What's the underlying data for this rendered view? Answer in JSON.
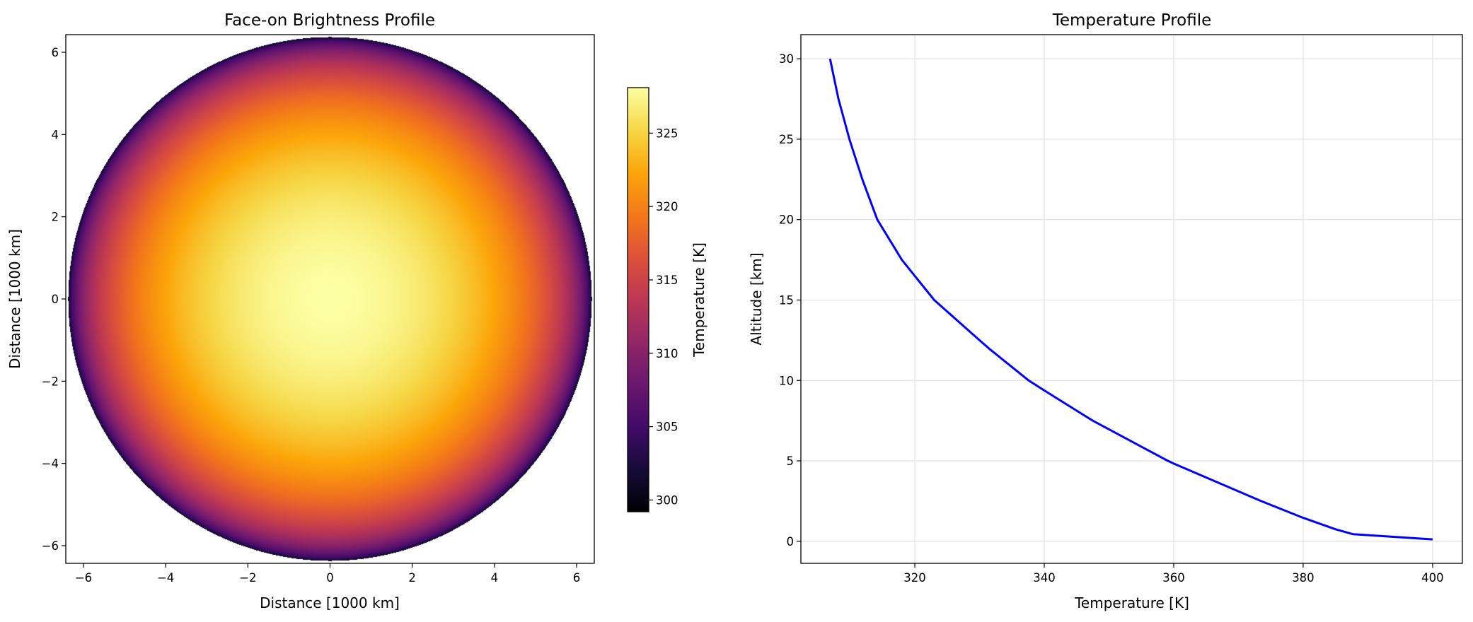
{
  "chart_data": [
    {
      "type": "heatmap",
      "title": "Face-on Brightness Profile",
      "xlabel": "Distance [1000 km]",
      "ylabel": "Distance [1000 km]",
      "xlim": [
        -6.43,
        6.43
      ],
      "ylim": [
        -6.43,
        6.43
      ],
      "xticks": [
        -6,
        -4,
        -2,
        0,
        2,
        4,
        6
      ],
      "xtick_labels": [
        "−6",
        "−4",
        "−2",
        "0",
        "2",
        "4",
        "6"
      ],
      "yticks": [
        -6,
        -4,
        -2,
        0,
        2,
        4,
        6
      ],
      "ytick_labels": [
        "−6",
        "−4",
        "−2",
        "0",
        "2",
        "4",
        "6"
      ],
      "disc_radius": 6.37,
      "center_value": 328.1,
      "limb_value": 299.2,
      "colormap": "inferno",
      "colorbar": {
        "label": "Temperature [K]",
        "range": [
          299.2,
          328.1
        ],
        "ticks": [
          300,
          305,
          310,
          315,
          320,
          325
        ],
        "tick_labels": [
          "300",
          "305",
          "310",
          "315",
          "320",
          "325"
        ]
      },
      "grid": false
    },
    {
      "type": "line",
      "title": "Temperature Profile",
      "xlabel": "Temperature [K]",
      "ylabel": "Altitude [km]",
      "xlim": [
        302.4,
        404.6
      ],
      "ylim": [
        -1.37,
        31.5
      ],
      "xticks": [
        320,
        340,
        360,
        380,
        400
      ],
      "xtick_labels": [
        "320",
        "340",
        "360",
        "380",
        "400"
      ],
      "yticks": [
        0,
        5,
        10,
        15,
        20,
        25,
        30
      ],
      "ytick_labels": [
        "0",
        "5",
        "10",
        "15",
        "20",
        "25",
        "30"
      ],
      "grid": true,
      "series": [
        {
          "color": "#0000ff",
          "x": [
            306.9,
            308.2,
            309.9,
            311.9,
            314.2,
            318.0,
            323.0,
            330.0,
            331.6,
            337.6,
            340.0,
            347.5,
            359.1,
            360.0,
            373.5,
            380.0,
            385.0,
            387.7,
            400.0
          ],
          "y": [
            30,
            27.5,
            25,
            22.5,
            20,
            17.5,
            15,
            12.5,
            11.94,
            10,
            9.38,
            7.5,
            5,
            4.83,
            2.5,
            1.46,
            0.75,
            0.44,
            0.12
          ]
        }
      ]
    }
  ]
}
